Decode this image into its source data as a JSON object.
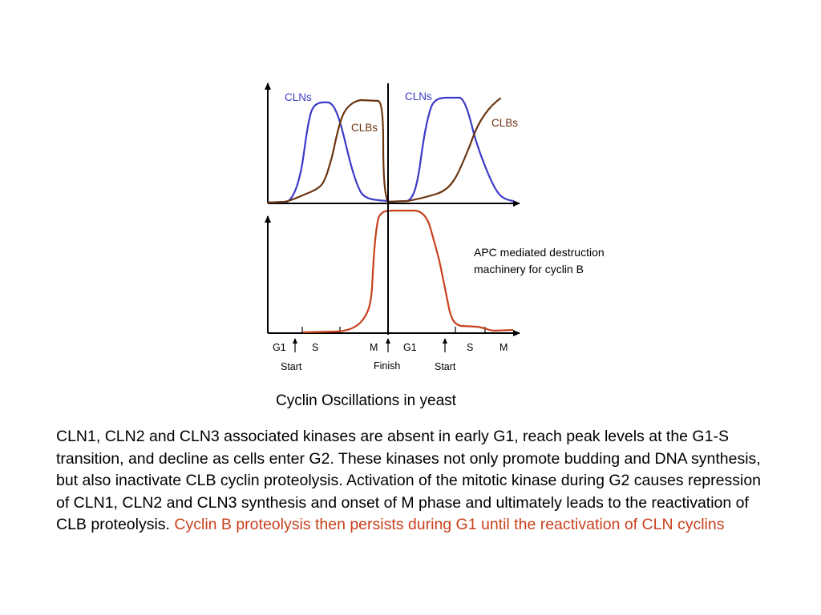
{
  "diagram": {
    "top_panel": {
      "labels": {
        "clns_first": "CLNs",
        "clbs_first": "CLBs",
        "clns_second": "CLNs",
        "clbs_second": "CLBs"
      }
    },
    "bottom_panel": {
      "annotation_lines": [
        "APC mediated destruction",
        "machinery for cyclin B"
      ]
    },
    "phases": [
      "G1",
      "S",
      "M",
      "G1",
      "S",
      "M"
    ],
    "events": [
      "Start",
      "Finish",
      "Start"
    ],
    "colors": {
      "cln_curve": "#3a3ac8",
      "clb_curve": "#6b3510",
      "apc_curve": "#c8401c",
      "axes": "#000000"
    }
  },
  "caption": "Cyclin Oscillations in yeast",
  "body_text": {
    "black": "CLN1, CLN2 and CLN3 associated kinases are absent in early G1, reach peak levels at the G1-S transition, and decline as cells enter G2.  These kinases not only promote budding and DNA synthesis, but also inactivate CLB cyclin proteolysis. Activation of the mitotic kinase during G2 causes repression of CLN1, CLN2 and CLN3 synthesis and onset of M phase and ultimately leads to the reactivation of CLB proteolysis.",
    "red": "Cyclin B proteolysis then persists during G1 until the reactivation of CLN cyclins"
  }
}
